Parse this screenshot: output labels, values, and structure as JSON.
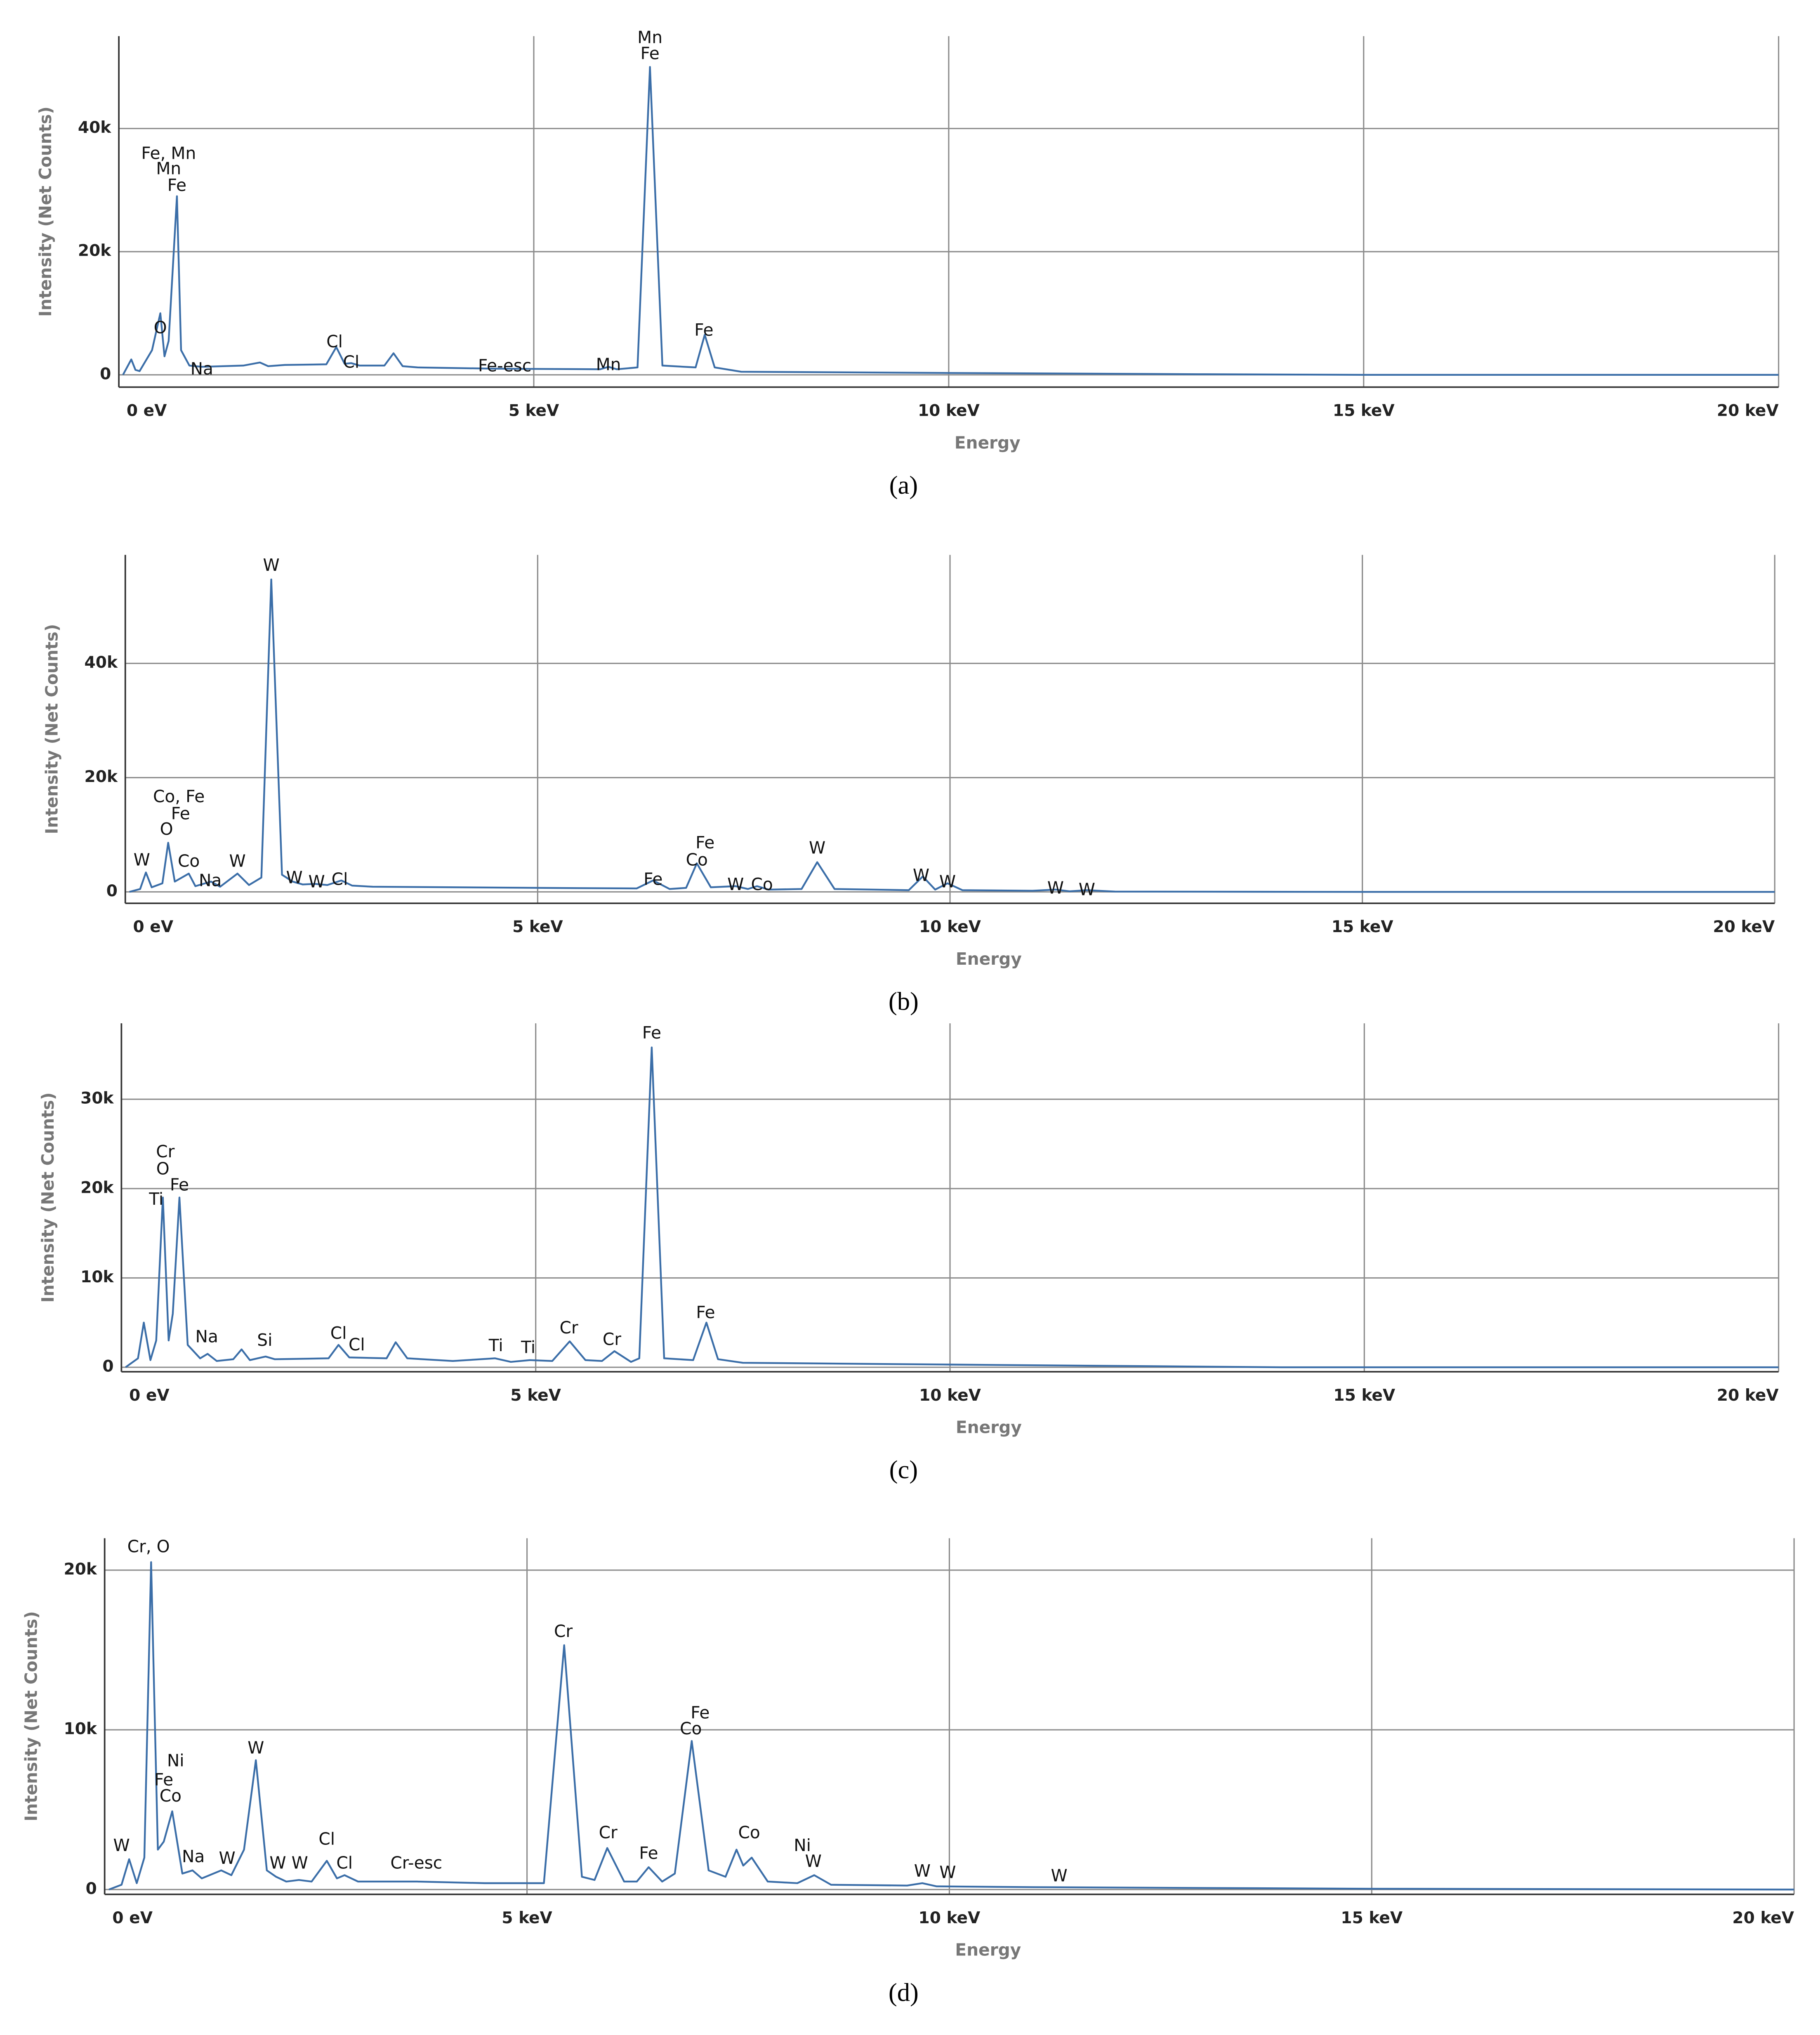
{
  "chart_data": [
    {
      "type": "line",
      "caption": "(a)",
      "x_label": "Energy",
      "y_label": "Intensity (Net Counts)",
      "color": "#3b6ea8",
      "grid": true,
      "xlim": [
        0,
        20
      ],
      "ylim": [
        -2000,
        55000
      ],
      "xticks": [
        {
          "value": 0,
          "label": "0 eV"
        },
        {
          "value": 5,
          "label": "5 keV"
        },
        {
          "value": 10,
          "label": "10 keV"
        },
        {
          "value": 15,
          "label": "15 keV"
        },
        {
          "value": 20,
          "label": "20 keV"
        }
      ],
      "yticks": [
        0,
        {
          "value": 20000,
          "label": "20k"
        },
        {
          "value": 40000,
          "label": "40k"
        }
      ],
      "x": [
        0.05,
        0.15,
        0.2,
        0.25,
        0.4,
        0.5,
        0.55,
        0.6,
        0.7,
        0.75,
        0.85,
        1.0,
        1.5,
        1.7,
        1.8,
        2.0,
        2.5,
        2.62,
        2.72,
        2.8,
        2.9,
        3.2,
        3.31,
        3.42,
        3.6,
        4.5,
        5.8,
        5.9,
        6.0,
        6.25,
        6.4,
        6.55,
        6.95,
        7.06,
        7.18,
        7.5,
        10,
        13,
        15,
        20
      ],
      "values": [
        0,
        2500,
        800,
        600,
        4000,
        10000,
        3000,
        5500,
        29000,
        4000,
        1500,
        1300,
        1500,
        2000,
        1400,
        1600,
        1700,
        4500,
        1800,
        1900,
        1500,
        1500,
        3500,
        1400,
        1200,
        1000,
        900,
        1300,
        900,
        1200,
        50000,
        1500,
        1200,
        6500,
        1200,
        500,
        300,
        100,
        0,
        0
      ],
      "annotations": [
        {
          "text": "Fe, Mn",
          "x": 0.6,
          "y": 35800
        },
        {
          "text": "Mn",
          "x": 0.6,
          "y": 33300
        },
        {
          "text": "Fe",
          "x": 0.7,
          "y": 30600
        },
        {
          "text": "O",
          "x": 0.5,
          "y": 7500
        },
        {
          "text": "Na",
          "x": 1.0,
          "y": 800
        },
        {
          "text": "Cl",
          "x": 2.6,
          "y": 5200
        },
        {
          "text": "Cl",
          "x": 2.8,
          "y": 1900
        },
        {
          "text": "Fe-esc",
          "x": 4.65,
          "y": 1300
        },
        {
          "text": "Mn",
          "x": 5.9,
          "y": 1500
        },
        {
          "text": "Mn",
          "x": 6.4,
          "y": 54600
        },
        {
          "text": "Fe",
          "x": 6.4,
          "y": 52000
        },
        {
          "text": "Fe",
          "x": 7.05,
          "y": 7100
        }
      ]
    },
    {
      "type": "line",
      "caption": "(b)",
      "x_label": "Energy",
      "y_label": "Intensity (Net Counts)",
      "color": "#3b6ea8",
      "grid": true,
      "xlim": [
        0,
        20
      ],
      "ylim": [
        -2000,
        59000
      ],
      "xticks": [
        {
          "value": 0,
          "label": "0 eV"
        },
        {
          "value": 5,
          "label": "5 keV"
        },
        {
          "value": 10,
          "label": "10 keV"
        },
        {
          "value": 15,
          "label": "15 keV"
        },
        {
          "value": 20,
          "label": "20 keV"
        }
      ],
      "yticks": [
        0,
        {
          "value": 20000,
          "label": "20k"
        },
        {
          "value": 40000,
          "label": "40k"
        }
      ],
      "x": [
        0.05,
        0.18,
        0.25,
        0.32,
        0.45,
        0.52,
        0.6,
        0.77,
        0.85,
        1.04,
        1.15,
        1.36,
        1.5,
        1.65,
        1.77,
        1.9,
        2.03,
        2.15,
        2.3,
        2.45,
        2.62,
        2.75,
        3,
        5,
        6.2,
        6.4,
        6.6,
        6.8,
        6.93,
        7.1,
        7.4,
        7.55,
        7.66,
        7.8,
        8.2,
        8.39,
        8.6,
        9.5,
        9.67,
        9.82,
        9.97,
        10.15,
        11,
        11.28,
        11.45,
        11.66,
        12,
        15,
        20
      ],
      "values": [
        0,
        500,
        3400,
        800,
        1500,
        8600,
        1800,
        3200,
        1000,
        1800,
        900,
        3200,
        1200,
        2500,
        54700,
        3000,
        1800,
        1300,
        1400,
        1200,
        2000,
        1100,
        900,
        700,
        600,
        2000,
        500,
        700,
        5000,
        800,
        1000,
        500,
        1000,
        400,
        500,
        5200,
        500,
        300,
        2700,
        400,
        1500,
        300,
        200,
        400,
        100,
        300,
        50,
        0,
        0
      ],
      "annotations": [
        {
          "text": "W",
          "x": 0.2,
          "y": 5400
        },
        {
          "text": "Co, Fe",
          "x": 0.65,
          "y": 16500
        },
        {
          "text": "Fe",
          "x": 0.67,
          "y": 13500
        },
        {
          "text": "O",
          "x": 0.5,
          "y": 10800
        },
        {
          "text": "Co",
          "x": 0.77,
          "y": 5200
        },
        {
          "text": "Na",
          "x": 1.03,
          "y": 1800
        },
        {
          "text": "W",
          "x": 1.36,
          "y": 5200
        },
        {
          "text": "W",
          "x": 1.77,
          "y": 57000
        },
        {
          "text": "W",
          "x": 2.05,
          "y": 2300
        },
        {
          "text": "W",
          "x": 2.32,
          "y": 1600
        },
        {
          "text": "Cl",
          "x": 2.6,
          "y": 2000
        },
        {
          "text": "Fe",
          "x": 6.4,
          "y": 2000
        },
        {
          "text": "Co",
          "x": 6.93,
          "y": 5400
        },
        {
          "text": "Fe",
          "x": 7.03,
          "y": 8400
        },
        {
          "text": "W",
          "x": 7.4,
          "y": 1100
        },
        {
          "text": "Co",
          "x": 7.72,
          "y": 1100
        },
        {
          "text": "W",
          "x": 8.39,
          "y": 7500
        },
        {
          "text": "W",
          "x": 9.65,
          "y": 2700
        },
        {
          "text": "W",
          "x": 9.97,
          "y": 1600
        },
        {
          "text": "W",
          "x": 11.28,
          "y": 500
        },
        {
          "text": "W",
          "x": 11.66,
          "y": 200
        }
      ]
    },
    {
      "type": "line",
      "caption": "(c)",
      "x_label": "Energy",
      "y_label": "Intensity (Net Counts)",
      "color": "#3b6ea8",
      "grid": true,
      "xlim": [
        0,
        20
      ],
      "ylim": [
        -500,
        38500
      ],
      "xticks": [
        {
          "value": 0,
          "label": "0 eV"
        },
        {
          "value": 5,
          "label": "5 keV"
        },
        {
          "value": 10,
          "label": "10 keV"
        },
        {
          "value": 15,
          "label": "15 keV"
        },
        {
          "value": 20,
          "label": "20 keV"
        }
      ],
      "yticks": [
        0,
        {
          "value": 10000,
          "label": "10k"
        },
        {
          "value": 20000,
          "label": "20k"
        },
        {
          "value": 30000,
          "label": "30k"
        }
      ],
      "x": [
        0.05,
        0.2,
        0.27,
        0.35,
        0.42,
        0.5,
        0.57,
        0.62,
        0.7,
        0.8,
        0.95,
        1.04,
        1.15,
        1.35,
        1.45,
        1.55,
        1.74,
        1.85,
        2.5,
        2.62,
        2.75,
        3.2,
        3.31,
        3.45,
        4,
        4.51,
        4.7,
        4.93,
        5.2,
        5.41,
        5.6,
        5.8,
        5.95,
        6.15,
        6.25,
        6.4,
        6.55,
        6.9,
        7.06,
        7.2,
        7.5,
        10,
        14,
        20
      ],
      "values": [
        0,
        1000,
        5000,
        800,
        3000,
        19000,
        3000,
        6000,
        19000,
        2500,
        1000,
        1500,
        700,
        900,
        2000,
        800,
        1200,
        900,
        1000,
        2500,
        1100,
        1000,
        2800,
        1000,
        700,
        1000,
        600,
        800,
        700,
        2900,
        800,
        700,
        1800,
        600,
        1000,
        35800,
        1000,
        800,
        5000,
        900,
        500,
        300,
        0,
        0
      ],
      "annotations": [
        {
          "text": "Cr",
          "x": 0.53,
          "y": 24000
        },
        {
          "text": "O",
          "x": 0.5,
          "y": 22100
        },
        {
          "text": "Fe",
          "x": 0.7,
          "y": 20300
        },
        {
          "text": "Ti",
          "x": 0.42,
          "y": 18700
        },
        {
          "text": "Na",
          "x": 1.03,
          "y": 3300
        },
        {
          "text": "Si",
          "x": 1.73,
          "y": 2900
        },
        {
          "text": "Cl",
          "x": 2.62,
          "y": 3700
        },
        {
          "text": "Cl",
          "x": 2.84,
          "y": 2400
        },
        {
          "text": "Ti",
          "x": 4.52,
          "y": 2300
        },
        {
          "text": "Ti",
          "x": 4.91,
          "y": 2100
        },
        {
          "text": "Cr",
          "x": 5.4,
          "y": 4300
        },
        {
          "text": "Cr",
          "x": 5.92,
          "y": 3000
        },
        {
          "text": "Fe",
          "x": 6.4,
          "y": 37300
        },
        {
          "text": "Fe",
          "x": 7.05,
          "y": 6000
        }
      ]
    },
    {
      "type": "line",
      "caption": "(d)",
      "x_label": "Energy",
      "y_label": "Intensity (Net Counts)",
      "color": "#3b6ea8",
      "grid": true,
      "xlim": [
        0,
        20
      ],
      "ylim": [
        -300,
        22000
      ],
      "xticks": [
        {
          "value": 0,
          "label": "0 eV"
        },
        {
          "value": 5,
          "label": "5 keV"
        },
        {
          "value": 10,
          "label": "10 keV"
        },
        {
          "value": 15,
          "label": "15 keV"
        },
        {
          "value": 20,
          "label": "20 keV"
        }
      ],
      "yticks": [
        0,
        {
          "value": 10000,
          "label": "10k"
        },
        {
          "value": 20000,
          "label": "20k"
        }
      ],
      "x": [
        0.05,
        0.2,
        0.29,
        0.38,
        0.47,
        0.55,
        0.63,
        0.7,
        0.8,
        0.92,
        1.04,
        1.15,
        1.38,
        1.5,
        1.65,
        1.79,
        1.92,
        2.03,
        2.15,
        2.3,
        2.45,
        2.63,
        2.75,
        2.84,
        3,
        3.7,
        4.5,
        5.2,
        5.44,
        5.65,
        5.8,
        5.95,
        6.15,
        6.3,
        6.44,
        6.6,
        6.75,
        6.95,
        7.15,
        7.35,
        7.48,
        7.56,
        7.66,
        7.85,
        8.2,
        8.4,
        8.6,
        9.5,
        9.68,
        9.85,
        11,
        15,
        20
      ],
      "values": [
        0,
        300,
        1900,
        400,
        2000,
        20500,
        2500,
        3000,
        4900,
        1000,
        1200,
        700,
        1200,
        900,
        2500,
        8100,
        1200,
        800,
        500,
        600,
        500,
        1800,
        700,
        900,
        500,
        500,
        400,
        400,
        15300,
        800,
        600,
        2600,
        500,
        500,
        1400,
        500,
        1000,
        9300,
        1200,
        800,
        2500,
        1500,
        2000,
        500,
        400,
        900,
        300,
        250,
        400,
        200,
        150,
        50,
        0
      ],
      "annotations": [
        {
          "text": "Cr, O",
          "x": 0.52,
          "y": 21400
        },
        {
          "text": "Ni",
          "x": 0.84,
          "y": 8000
        },
        {
          "text": "Fe",
          "x": 0.7,
          "y": 6800
        },
        {
          "text": "Co",
          "x": 0.78,
          "y": 5800
        },
        {
          "text": "W",
          "x": 0.2,
          "y": 2700
        },
        {
          "text": "Na",
          "x": 1.05,
          "y": 2000
        },
        {
          "text": "W",
          "x": 1.45,
          "y": 1900
        },
        {
          "text": "W",
          "x": 1.79,
          "y": 8800
        },
        {
          "text": "W",
          "x": 2.05,
          "y": 1600
        },
        {
          "text": "W",
          "x": 2.31,
          "y": 1600
        },
        {
          "text": "Cl",
          "x": 2.63,
          "y": 3100
        },
        {
          "text": "Cl",
          "x": 2.84,
          "y": 1600
        },
        {
          "text": "Cr-esc",
          "x": 3.69,
          "y": 1600
        },
        {
          "text": "Cr",
          "x": 5.43,
          "y": 16100
        },
        {
          "text": "Cr",
          "x": 5.96,
          "y": 3500
        },
        {
          "text": "Fe",
          "x": 6.44,
          "y": 2200
        },
        {
          "text": "Fe",
          "x": 7.05,
          "y": 11000
        },
        {
          "text": "Co",
          "x": 6.94,
          "y": 10000
        },
        {
          "text": "Co",
          "x": 7.63,
          "y": 3500
        },
        {
          "text": "Ni",
          "x": 8.26,
          "y": 2700
        },
        {
          "text": "W",
          "x": 8.39,
          "y": 1700
        },
        {
          "text": "W",
          "x": 9.68,
          "y": 1100
        },
        {
          "text": "W",
          "x": 9.98,
          "y": 1000
        },
        {
          "text": "W",
          "x": 11.3,
          "y": 800
        }
      ]
    }
  ]
}
